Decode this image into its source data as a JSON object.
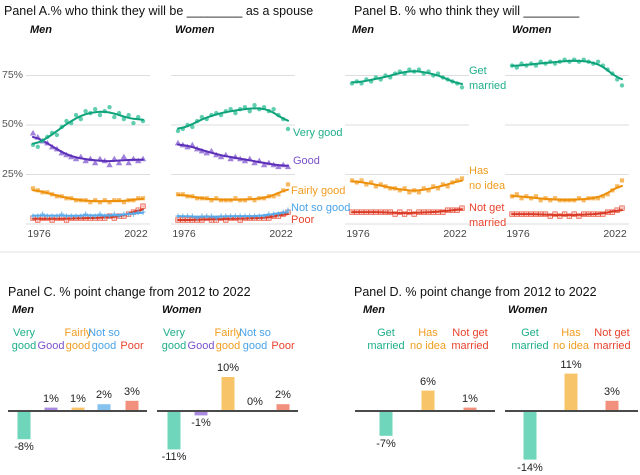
{
  "colors": {
    "grid": "#dedede",
    "separator": "#e2e2e2",
    "bar_axis": "#4a4a4a",
    "tick_text": "#555555",
    "title_text": "#111111"
  },
  "chart_data": [
    {
      "id": "panelA",
      "type": "scatter",
      "title": "Panel A.% who think they will be ________ as a spouse",
      "x_start": 1976,
      "x_step": 2,
      "xticks": [
        "1976",
        "2022"
      ],
      "yticks": [
        "75%",
        "50%",
        "25%"
      ],
      "ylim": [
        0,
        100
      ],
      "grid_values": [
        75,
        50,
        25,
        0
      ],
      "series_labels": [
        {
          "lines": [
            "Very good"
          ],
          "color": "#1fae8a"
        },
        {
          "lines": [
            "Good"
          ],
          "color": "#7a52cc"
        },
        {
          "lines": [
            "Fairly good"
          ],
          "color": "#f09c1f"
        },
        {
          "lines": [
            "Not so good"
          ],
          "color": "#4aa3e8"
        },
        {
          "lines": [
            "Poor"
          ],
          "color": "#e8432d"
        }
      ],
      "groups": [
        {
          "label": "Men",
          "series": [
            {
              "name": "Very good",
              "marker": "circle",
              "color": "#2ebd96",
              "line": "#0ea37a",
              "values": [
                40,
                39,
                42,
                44,
                46,
                45,
                49,
                52,
                51,
                55,
                53,
                57,
                56,
                58,
                55,
                57,
                59,
                54,
                56,
                53,
                55,
                51,
                54,
                52
              ]
            },
            {
              "name": "Good",
              "marker": "triangle",
              "color": "#8a63d2",
              "line": "#5b2fb8",
              "values": [
                46,
                44,
                42,
                41,
                39,
                38,
                36,
                35,
                34,
                33,
                34,
                32,
                33,
                31,
                33,
                32,
                30,
                33,
                31,
                34,
                31,
                33,
                32,
                33
              ]
            },
            {
              "name": "Fairly good",
              "marker": "square",
              "color": "#f5a83c",
              "line": "#ec8f0a",
              "values": [
                18,
                17,
                16,
                16,
                15,
                14,
                14,
                13,
                13,
                12,
                12,
                12,
                11,
                12,
                11,
                12,
                11,
                12,
                12,
                11,
                12,
                12,
                13,
                13
              ]
            },
            {
              "name": "Not so good",
              "marker": "plus",
              "color": "#56a8e8",
              "line": "#56a8e8",
              "values": [
                4,
                4,
                5,
                4,
                4,
                4,
                5,
                4,
                4,
                4,
                4,
                5,
                4,
                4,
                5,
                4,
                4,
                5,
                4,
                5,
                5,
                5,
                6,
                6
              ]
            },
            {
              "name": "Poor",
              "marker": "sqplus",
              "color": "#e8432d",
              "line": "#d93a25",
              "values": [
                3,
                2,
                3,
                3,
                2,
                3,
                3,
                2,
                3,
                3,
                3,
                3,
                3,
                3,
                3,
                3,
                4,
                3,
                4,
                4,
                5,
                6,
                7,
                9
              ]
            }
          ]
        },
        {
          "label": "Women",
          "series": [
            {
              "name": "Very good",
              "marker": "circle",
              "color": "#2ebd96",
              "line": "#0ea37a",
              "values": [
                47,
                48,
                50,
                49,
                52,
                54,
                53,
                55,
                56,
                55,
                57,
                58,
                56,
                58,
                59,
                57,
                60,
                58,
                59,
                57,
                58,
                55,
                53,
                48
              ]
            },
            {
              "name": "Good",
              "marker": "triangle",
              "color": "#8a63d2",
              "line": "#5b2fb8",
              "values": [
                41,
                40,
                39,
                40,
                38,
                37,
                36,
                37,
                35,
                34,
                35,
                33,
                34,
                33,
                32,
                33,
                31,
                32,
                30,
                31,
                30,
                29,
                30,
                29
              ]
            },
            {
              "name": "Fairly good",
              "marker": "square",
              "color": "#f5a83c",
              "line": "#ec8f0a",
              "values": [
                15,
                15,
                14,
                14,
                13,
                13,
                13,
                12,
                13,
                12,
                12,
                12,
                13,
                12,
                12,
                13,
                12,
                13,
                13,
                14,
                14,
                15,
                17,
                20
              ]
            },
            {
              "name": "Not so good",
              "marker": "plus",
              "color": "#56a8e8",
              "line": "#56a8e8",
              "values": [
                4,
                4,
                4,
                4,
                3,
                4,
                4,
                4,
                3,
                4,
                4,
                4,
                4,
                4,
                4,
                4,
                4,
                4,
                4,
                5,
                5,
                5,
                6,
                7
              ]
            },
            {
              "name": "Poor",
              "marker": "sqplus",
              "color": "#e8432d",
              "line": "#d93a25",
              "values": [
                2,
                2,
                2,
                2,
                2,
                2,
                3,
                2,
                2,
                3,
                2,
                3,
                3,
                2,
                3,
                3,
                3,
                3,
                3,
                3,
                4,
                4,
                5,
                6
              ]
            }
          ]
        }
      ]
    },
    {
      "id": "panelB",
      "type": "scatter",
      "title": "Panel B. % who think they will ________",
      "x_start": 1976,
      "x_step": 2,
      "xticks": [
        "1976",
        "2022"
      ],
      "yticks": [],
      "ylim": [
        0,
        100
      ],
      "grid_values": [
        75,
        50,
        25,
        0
      ],
      "series_labels": [
        {
          "lines": [
            "Get",
            "married"
          ],
          "color": "#1fae8a"
        },
        {
          "lines": [
            "Has",
            "no idea"
          ],
          "color": "#f09c1f"
        },
        {
          "lines": [
            "Not get",
            "married"
          ],
          "color": "#e8432d"
        }
      ],
      "groups": [
        {
          "label": "Men",
          "series": [
            {
              "name": "Get married",
              "marker": "circle",
              "color": "#2ebd96",
              "line": "#0ea37a",
              "values": [
                71,
                72,
                71,
                73,
                72,
                74,
                73,
                75,
                74,
                76,
                77,
                76,
                78,
                77,
                78,
                76,
                77,
                75,
                76,
                74,
                73,
                72,
                71,
                69
              ]
            },
            {
              "name": "Has no idea",
              "marker": "square",
              "color": "#f5a83c",
              "line": "#ec8f0a",
              "values": [
                22,
                21,
                22,
                20,
                21,
                19,
                20,
                19,
                18,
                18,
                17,
                18,
                16,
                17,
                16,
                18,
                17,
                19,
                18,
                20,
                19,
                21,
                22,
                23
              ]
            },
            {
              "name": "Not get married",
              "marker": "sqplus",
              "color": "#e8432d",
              "line": "#d93a25",
              "values": [
                6,
                6,
                6,
                6,
                6,
                6,
                6,
                6,
                6,
                5,
                6,
                5,
                6,
                5,
                6,
                6,
                6,
                6,
                6,
                6,
                7,
                7,
                7,
                8
              ]
            }
          ]
        },
        {
          "label": "Women",
          "series": [
            {
              "name": "Get married",
              "marker": "circle",
              "color": "#2ebd96",
              "line": "#0ea37a",
              "values": [
                80,
                79,
                81,
                80,
                81,
                80,
                82,
                81,
                82,
                81,
                82,
                83,
                82,
                83,
                82,
                83,
                82,
                81,
                82,
                80,
                78,
                76,
                73,
                70
              ]
            },
            {
              "name": "Has no idea",
              "marker": "square",
              "color": "#f5a83c",
              "line": "#ec8f0a",
              "values": [
                14,
                15,
                13,
                14,
                13,
                14,
                12,
                13,
                12,
                13,
                12,
                12,
                12,
                12,
                13,
                12,
                13,
                13,
                13,
                14,
                15,
                17,
                19,
                22
              ]
            },
            {
              "name": "Not get married",
              "marker": "sqplus",
              "color": "#e8432d",
              "line": "#d93a25",
              "values": [
                5,
                5,
                5,
                5,
                5,
                5,
                5,
                5,
                4,
                5,
                4,
                5,
                4,
                5,
                4,
                5,
                5,
                5,
                5,
                5,
                6,
                6,
                7,
                8
              ]
            }
          ]
        }
      ]
    },
    {
      "id": "panelC",
      "type": "bar",
      "title": "Panel C. % point change from 2012 to 2022",
      "groups": [
        {
          "label": "Men",
          "bars": [
            {
              "name": "Very good",
              "header_lines": [
                "Very",
                "good"
              ],
              "header_color": "#1fae8a",
              "value": -8,
              "label": "-8%",
              "color": "#6fd6bb"
            },
            {
              "name": "Good",
              "header_lines": [
                "Good"
              ],
              "header_color": "#7a52cc",
              "value": 1,
              "label": "1%",
              "color": "#a98ae0"
            },
            {
              "name": "Fairly good",
              "header_lines": [
                "Fairly",
                "good"
              ],
              "header_color": "#f09c1f",
              "value": 1,
              "label": "1%",
              "color": "#f7c469"
            },
            {
              "name": "Not so good",
              "header_lines": [
                "Not so",
                "good"
              ],
              "header_color": "#4aa3e8",
              "value": 2,
              "label": "2%",
              "color": "#85c3ef"
            },
            {
              "name": "Poor",
              "header_lines": [
                "Poor"
              ],
              "header_color": "#e8432d",
              "value": 3,
              "label": "3%",
              "color": "#f2907e"
            }
          ]
        },
        {
          "label": "Women",
          "bars": [
            {
              "name": "Very good",
              "header_lines": [
                "Very",
                "good"
              ],
              "header_color": "#1fae8a",
              "value": -11,
              "label": "-11%",
              "color": "#6fd6bb"
            },
            {
              "name": "Good",
              "header_lines": [
                "Good"
              ],
              "header_color": "#7a52cc",
              "value": -1,
              "label": "-1%",
              "color": "#a98ae0"
            },
            {
              "name": "Fairly good",
              "header_lines": [
                "Fairly",
                "good"
              ],
              "header_color": "#f09c1f",
              "value": 10,
              "label": "10%",
              "color": "#f7c469"
            },
            {
              "name": "Not so good",
              "header_lines": [
                "Not so",
                "good"
              ],
              "header_color": "#4aa3e8",
              "value": 0,
              "label": "0%",
              "color": "#85c3ef"
            },
            {
              "name": "Poor",
              "header_lines": [
                "Poor"
              ],
              "header_color": "#e8432d",
              "value": 2,
              "label": "2%",
              "color": "#f2907e"
            }
          ]
        }
      ]
    },
    {
      "id": "panelD",
      "type": "bar",
      "title": "Panel D. % point change from 2012 to 2022",
      "groups": [
        {
          "label": "Men",
          "bars": [
            {
              "name": "Get married",
              "header_lines": [
                "Get",
                "married"
              ],
              "header_color": "#1fae8a",
              "value": -7,
              "label": "-7%",
              "color": "#6fd6bb"
            },
            {
              "name": "Has no idea",
              "header_lines": [
                "Has",
                "no idea"
              ],
              "header_color": "#f09c1f",
              "value": 6,
              "label": "6%",
              "color": "#f7c469"
            },
            {
              "name": "Not get married",
              "header_lines": [
                "Not get",
                "married"
              ],
              "header_color": "#e8432d",
              "value": 1,
              "label": "1%",
              "color": "#f2907e"
            }
          ]
        },
        {
          "label": "Women",
          "bars": [
            {
              "name": "Get married",
              "header_lines": [
                "Get",
                "married"
              ],
              "header_color": "#1fae8a",
              "value": -14,
              "label": "-14%",
              "color": "#6fd6bb"
            },
            {
              "name": "Has no idea",
              "header_lines": [
                "Has",
                "no idea"
              ],
              "header_color": "#f09c1f",
              "value": 11,
              "label": "11%",
              "color": "#f7c469"
            },
            {
              "name": "Not get married",
              "header_lines": [
                "Not get",
                "married"
              ],
              "header_color": "#e8432d",
              "value": 3,
              "label": "3%",
              "color": "#f2907e"
            }
          ]
        }
      ]
    }
  ]
}
